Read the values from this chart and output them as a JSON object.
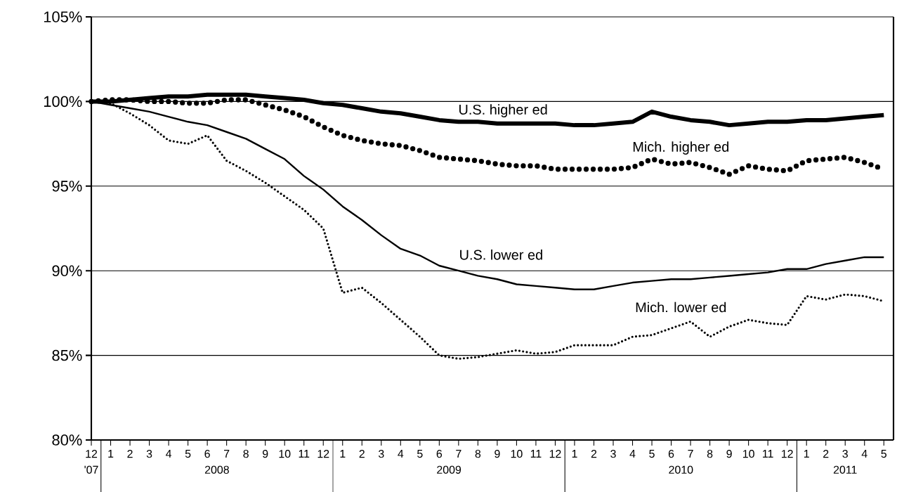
{
  "chart_data": {
    "type": "line",
    "x": [
      "2007-12",
      "2008-01",
      "2008-02",
      "2008-03",
      "2008-04",
      "2008-05",
      "2008-06",
      "2008-07",
      "2008-08",
      "2008-09",
      "2008-10",
      "2008-11",
      "2008-12",
      "2009-01",
      "2009-02",
      "2009-03",
      "2009-04",
      "2009-05",
      "2009-06",
      "2009-07",
      "2009-08",
      "2009-09",
      "2009-10",
      "2009-11",
      "2009-12",
      "2010-01",
      "2010-02",
      "2010-03",
      "2010-04",
      "2010-05",
      "2010-06",
      "2010-07",
      "2010-08",
      "2010-09",
      "2010-10",
      "2010-11",
      "2010-12",
      "2011-01",
      "2011-02",
      "2011-03",
      "2011-04",
      "2011-05"
    ],
    "series": [
      {
        "name": "U.S. higher ed",
        "color": "#000000",
        "line_style": "solid",
        "values": [
          100,
          100,
          100.1,
          100.2,
          100.3,
          100.3,
          100.4,
          100.4,
          100.4,
          100.3,
          100.2,
          100.1,
          99.9,
          99.8,
          99.6,
          99.4,
          99.3,
          99.1,
          98.9,
          98.8,
          98.8,
          98.7,
          98.7,
          98.7,
          98.7,
          98.6,
          98.6,
          98.7,
          98.8,
          99.4,
          99.1,
          98.9,
          98.8,
          98.6,
          98.7,
          98.8,
          98.8,
          98.9,
          98.9,
          99.0,
          99.1,
          99.2
        ]
      },
      {
        "name": "Mich. higher ed",
        "color": "#000000",
        "line_style": "dotted",
        "values": [
          100,
          100.1,
          100.1,
          100,
          100,
          99.9,
          99.9,
          100.1,
          100.1,
          99.8,
          99.5,
          99.1,
          98.5,
          98.0,
          97.7,
          97.5,
          97.4,
          97.1,
          96.7,
          96.6,
          96.5,
          96.3,
          96.2,
          96.2,
          96.0,
          96.0,
          96.0,
          96.0,
          96.1,
          96.6,
          96.3,
          96.4,
          96.1,
          95.7,
          96.2,
          96.0,
          95.9,
          96.5,
          96.6,
          96.7,
          96.4,
          96.0
        ]
      },
      {
        "name": "U.S. lower ed",
        "color": "#000000",
        "line_style": "solid",
        "values": [
          100,
          99.8,
          99.6,
          99.4,
          99.1,
          98.8,
          98.6,
          98.2,
          97.8,
          97.2,
          96.6,
          95.6,
          94.8,
          93.8,
          93.0,
          92.1,
          91.3,
          90.9,
          90.3,
          90.0,
          89.7,
          89.5,
          89.2,
          89.1,
          89.0,
          88.9,
          88.9,
          89.1,
          89.3,
          89.4,
          89.5,
          89.5,
          89.6,
          89.7,
          89.8,
          89.9,
          90.1,
          90.1,
          90.4,
          90.6,
          90.8,
          90.8
        ]
      },
      {
        "name": "Mich. lower ed",
        "color": "#000000",
        "line_style": "dotted",
        "values": [
          100,
          99.9,
          99.3,
          98.6,
          97.7,
          97.5,
          98.0,
          96.5,
          95.9,
          95.2,
          94.4,
          93.6,
          92.5,
          88.7,
          89.0,
          88.1,
          87.1,
          86.1,
          85.0,
          84.8,
          84.9,
          85.1,
          85.3,
          85.1,
          85.2,
          85.6,
          85.6,
          85.6,
          86.1,
          86.2,
          86.6,
          87.0,
          86.1,
          86.7,
          87.1,
          86.9,
          86.8,
          88.5,
          88.3,
          88.6,
          88.5,
          88.2
        ]
      }
    ],
    "xlim": [
      "2007-12",
      "2011-05-16"
    ],
    "xticks": [
      {
        "value": "2007-12",
        "label": "12"
      },
      {
        "value": "2008-01",
        "label": "1"
      },
      {
        "value": "2008-02",
        "label": "2"
      },
      {
        "value": "2008-03",
        "label": "3"
      },
      {
        "value": "2008-04",
        "label": "4"
      },
      {
        "value": "2008-05",
        "label": "5"
      },
      {
        "value": "2008-06",
        "label": "6"
      },
      {
        "value": "2008-07",
        "label": "7"
      },
      {
        "value": "2008-08",
        "label": "8"
      },
      {
        "value": "2008-09",
        "label": "9"
      },
      {
        "value": "2008-10",
        "label": "10"
      },
      {
        "value": "2008-11",
        "label": "11"
      },
      {
        "value": "2008-12",
        "label": "12"
      },
      {
        "value": "2009-01",
        "label": "1"
      },
      {
        "value": "2009-02",
        "label": "2"
      },
      {
        "value": "2009-03",
        "label": "3"
      },
      {
        "value": "2009-04",
        "label": "4"
      },
      {
        "value": "2009-05",
        "label": "5"
      },
      {
        "value": "2009-06",
        "label": "6"
      },
      {
        "value": "2009-07",
        "label": "7"
      },
      {
        "value": "2009-08",
        "label": "8"
      },
      {
        "value": "2009-09",
        "label": "9"
      },
      {
        "value": "2009-10",
        "label": "10"
      },
      {
        "value": "2009-11",
        "label": "11"
      },
      {
        "value": "2009-12",
        "label": "12"
      },
      {
        "value": "2010-01",
        "label": "1"
      },
      {
        "value": "2010-02",
        "label": "2"
      },
      {
        "value": "2010-03",
        "label": "3"
      },
      {
        "value": "2010-04",
        "label": "4"
      },
      {
        "value": "2010-05",
        "label": "5"
      },
      {
        "value": "2010-06",
        "label": "6"
      },
      {
        "value": "2010-07",
        "label": "7"
      },
      {
        "value": "2010-08",
        "label": "8"
      },
      {
        "value": "2010-09",
        "label": "9"
      },
      {
        "value": "2010-10",
        "label": "10"
      },
      {
        "value": "2010-11",
        "label": "11"
      },
      {
        "value": "2010-12",
        "label": "12"
      },
      {
        "value": "2011-01",
        "label": "1"
      },
      {
        "value": "2011-02",
        "label": "2"
      },
      {
        "value": "2011-03",
        "label": "3"
      },
      {
        "value": "2011-04",
        "label": "4"
      },
      {
        "value": "2011-05",
        "label": "5"
      }
    ],
    "ylim": [
      80,
      105
    ],
    "yticks": [
      {
        "value": 80,
        "label": "80%"
      },
      {
        "value": 85,
        "label": "85%"
      },
      {
        "value": 90,
        "label": "90%"
      },
      {
        "value": 95,
        "label": "95%"
      },
      {
        "value": 100,
        "label": "100%"
      },
      {
        "value": 105,
        "label": "105%"
      }
    ],
    "grid": "y",
    "marker": "none",
    "legend": false,
    "annotations": [
      "'07",
      "2008",
      "2009",
      "2010",
      "2011"
    ]
  }
}
